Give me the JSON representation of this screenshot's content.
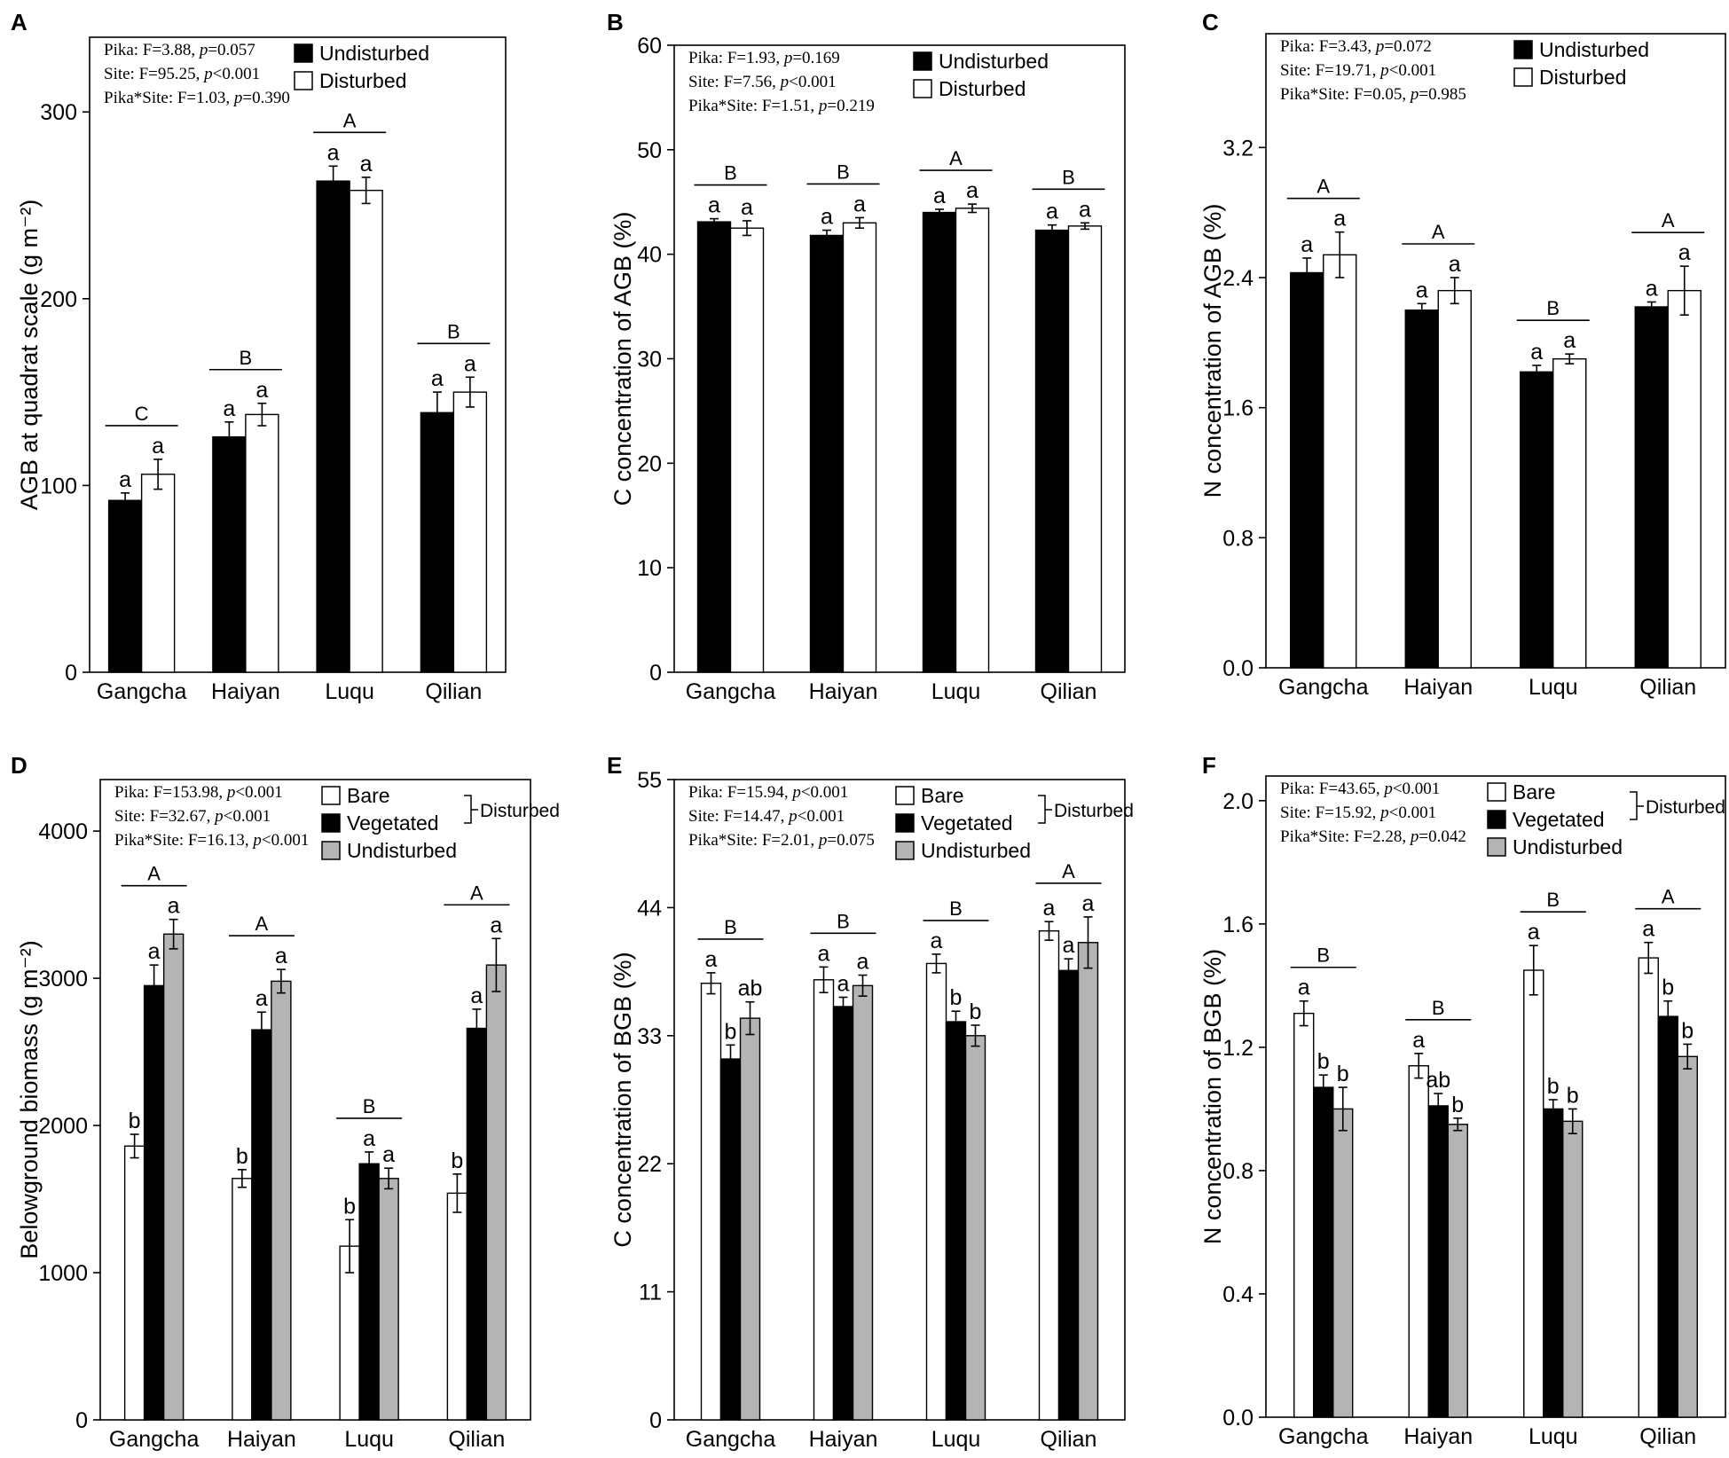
{
  "figure": {
    "sites": [
      "Gangcha",
      "Haiyan",
      "Luqu",
      "Qilian"
    ]
  },
  "colors": {
    "undisturbed_top": "#000000",
    "disturbed_top": "#ffffff",
    "bare": "#ffffff",
    "vegetated": "#000000",
    "undisturbed_bottom": "#b4b4b4",
    "axis": "#000000"
  },
  "chart_data": [
    {
      "panel": "A",
      "type": "bar",
      "ylabel": "AGB at quadrat scale (g m⁻²)",
      "ylim": [
        0,
        340
      ],
      "ticks": [
        0,
        100,
        200,
        300
      ],
      "tick_labels": [
        "0",
        "100",
        "200",
        "300"
      ],
      "categories": [
        "Gangcha",
        "Haiyan",
        "Luqu",
        "Qilian"
      ],
      "stats": [
        {
          "pre": "Pika: F=3.88, ",
          "p": "p",
          "post": "=0.057"
        },
        {
          "pre": "Site: F=95.25, ",
          "p": "p",
          "post": "<0.001"
        },
        {
          "pre": "Pika*Site: F=1.03, ",
          "p": "p",
          "post": "=0.390"
        }
      ],
      "legend": [
        "Undisturbed",
        "Disturbed"
      ],
      "group_label": "",
      "series": [
        {
          "name": "Undisturbed",
          "color_key": "undisturbed_top",
          "values": [
            92,
            126,
            263,
            139
          ],
          "errors": [
            4,
            8,
            8,
            11
          ],
          "letters": [
            "a",
            "a",
            "a",
            "a"
          ]
        },
        {
          "name": "Disturbed",
          "color_key": "disturbed_top",
          "values": [
            106,
            138,
            258,
            150
          ],
          "errors": [
            8,
            6,
            7,
            8
          ],
          "letters": [
            "a",
            "a",
            "a",
            "a"
          ]
        }
      ],
      "site_letters": [
        "C",
        "B",
        "A",
        "B"
      ]
    },
    {
      "panel": "B",
      "type": "bar",
      "ylabel": "C concentration of AGB (%)",
      "ylim": [
        0,
        60
      ],
      "ticks": [
        0,
        10,
        20,
        30,
        40,
        50,
        60
      ],
      "tick_labels": [
        "0",
        "10",
        "20",
        "30",
        "40",
        "50",
        "60"
      ],
      "categories": [
        "Gangcha",
        "Haiyan",
        "Luqu",
        "Qilian"
      ],
      "stats": [
        {
          "pre": "Pika: F=1.93, ",
          "p": "p",
          "post": "=0.169"
        },
        {
          "pre": "Site: F=7.56, ",
          "p": "p",
          "post": "<0.001"
        },
        {
          "pre": "Pika*Site: F=1.51, ",
          "p": "p",
          "post": "=0.219"
        }
      ],
      "legend": [
        "Undisturbed",
        "Disturbed"
      ],
      "group_label": "",
      "series": [
        {
          "name": "Undisturbed",
          "color_key": "undisturbed_top",
          "values": [
            43.1,
            41.8,
            44.0,
            42.3
          ],
          "errors": [
            0.3,
            0.5,
            0.3,
            0.5
          ],
          "letters": [
            "a",
            "a",
            "a",
            "a"
          ]
        },
        {
          "name": "Disturbed",
          "color_key": "disturbed_top",
          "values": [
            42.5,
            43.0,
            44.4,
            42.7
          ],
          "errors": [
            0.7,
            0.5,
            0.4,
            0.3
          ],
          "letters": [
            "a",
            "a",
            "a",
            "a"
          ]
        }
      ],
      "site_letters": [
        "B",
        "B",
        "A",
        "B"
      ]
    },
    {
      "panel": "C",
      "type": "bar",
      "ylabel": "N concentration of AGB (%)",
      "ylim": [
        0,
        3.9
      ],
      "ticks": [
        0,
        0.8,
        1.6,
        2.4,
        3.2
      ],
      "tick_labels": [
        "0.0",
        "0.8",
        "1.6",
        "2.4",
        "3.2"
      ],
      "categories": [
        "Gangcha",
        "Haiyan",
        "Luqu",
        "Qilian"
      ],
      "stats": [
        {
          "pre": "Pika: F=3.43, ",
          "p": "p",
          "post": "=0.072"
        },
        {
          "pre": "Site: F=19.71, ",
          "p": "p",
          "post": "<0.001"
        },
        {
          "pre": "Pika*Site: F=0.05, ",
          "p": "p",
          "post": "=0.985"
        }
      ],
      "legend": [
        "Undisturbed",
        "Disturbed"
      ],
      "group_label": "",
      "series": [
        {
          "name": "Undisturbed",
          "color_key": "undisturbed_top",
          "values": [
            2.43,
            2.2,
            1.82,
            2.22
          ],
          "errors": [
            0.09,
            0.04,
            0.04,
            0.03
          ],
          "letters": [
            "a",
            "a",
            "a",
            "a"
          ]
        },
        {
          "name": "Disturbed",
          "color_key": "disturbed_top",
          "values": [
            2.54,
            2.32,
            1.9,
            2.32
          ],
          "errors": [
            0.14,
            0.08,
            0.03,
            0.15
          ],
          "letters": [
            "a",
            "a",
            "a",
            "a"
          ]
        }
      ],
      "site_letters": [
        "A",
        "A",
        "B",
        "A"
      ]
    },
    {
      "panel": "D",
      "type": "bar",
      "ylabel": "Belowground biomass (g m⁻²)",
      "ylim": [
        0,
        4350
      ],
      "ticks": [
        0,
        1000,
        2000,
        3000,
        4000
      ],
      "tick_labels": [
        "0",
        "1000",
        "2000",
        "3000",
        "4000"
      ],
      "categories": [
        "Gangcha",
        "Haiyan",
        "Luqu",
        "Qilian"
      ],
      "stats": [
        {
          "pre": "Pika: F=153.98, ",
          "p": "p",
          "post": "<0.001"
        },
        {
          "pre": "Site: F=32.67, ",
          "p": "p",
          "post": "<0.001"
        },
        {
          "pre": "Pika*Site: F=16.13, ",
          "p": "p",
          "post": "<0.001"
        }
      ],
      "legend": [
        "Bare",
        "Vegetated",
        "Undisturbed"
      ],
      "group_label": "Disturbed",
      "series": [
        {
          "name": "Bare",
          "color_key": "bare",
          "values": [
            1860,
            1640,
            1180,
            1540
          ],
          "errors": [
            80,
            60,
            180,
            130
          ],
          "letters": [
            "b",
            "b",
            "b",
            "b"
          ]
        },
        {
          "name": "Vegetated",
          "color_key": "vegetated",
          "values": [
            2950,
            2650,
            1740,
            2660
          ],
          "errors": [
            140,
            120,
            80,
            130
          ],
          "letters": [
            "a",
            "a",
            "a",
            "a"
          ]
        },
        {
          "name": "Undisturbed",
          "color_key": "undisturbed_bottom",
          "values": [
            3300,
            2980,
            1640,
            3090
          ],
          "errors": [
            100,
            80,
            70,
            180
          ],
          "letters": [
            "a",
            "a",
            "a",
            "a"
          ]
        }
      ],
      "site_letters": [
        "A",
        "A",
        "B",
        "A"
      ]
    },
    {
      "panel": "E",
      "type": "bar",
      "ylabel": "C concentration of BGB (%)",
      "ylim": [
        0,
        55
      ],
      "ticks": [
        0,
        11,
        22,
        33,
        44,
        55
      ],
      "tick_labels": [
        "0",
        "11",
        "22",
        "33",
        "44",
        "55"
      ],
      "categories": [
        "Gangcha",
        "Haiyan",
        "Luqu",
        "Qilian"
      ],
      "stats": [
        {
          "pre": "Pika: F=15.94, ",
          "p": "p",
          "post": "<0.001"
        },
        {
          "pre": "Site: F=14.47, ",
          "p": "p",
          "post": "<0.001"
        },
        {
          "pre": "Pika*Site: F=2.01, ",
          "p": "p",
          "post": "=0.075"
        }
      ],
      "legend": [
        "Bare",
        "Vegetated",
        "Undisturbed"
      ],
      "group_label": "Disturbed",
      "series": [
        {
          "name": "Bare",
          "color_key": "bare",
          "values": [
            37.5,
            37.8,
            39.2,
            42.0
          ],
          "errors": [
            0.9,
            1.1,
            0.8,
            0.8
          ],
          "letters": [
            "a",
            "a",
            "a",
            "a"
          ]
        },
        {
          "name": "Vegetated",
          "color_key": "vegetated",
          "values": [
            31.0,
            35.5,
            34.2,
            38.6
          ],
          "errors": [
            1.2,
            0.8,
            0.9,
            1.0
          ],
          "letters": [
            "b",
            "a",
            "b",
            "a"
          ]
        },
        {
          "name": "Undisturbed",
          "color_key": "undisturbed_bottom",
          "values": [
            34.5,
            37.3,
            33.0,
            41.0
          ],
          "errors": [
            1.4,
            0.9,
            0.9,
            2.2
          ],
          "letters": [
            "ab",
            "a",
            "b",
            "a"
          ]
        }
      ],
      "site_letters": [
        "B",
        "B",
        "B",
        "A"
      ]
    },
    {
      "panel": "F",
      "type": "bar",
      "ylabel": "N concentration of BGB (%)",
      "ylim": [
        0,
        2.08
      ],
      "ticks": [
        0,
        0.4,
        0.8,
        1.2,
        1.6,
        2.0
      ],
      "tick_labels": [
        "0.0",
        "0.4",
        "0.8",
        "1.2",
        "1.6",
        "2.0"
      ],
      "categories": [
        "Gangcha",
        "Haiyan",
        "Luqu",
        "Qilian"
      ],
      "stats": [
        {
          "pre": "Pika: F=43.65, ",
          "p": "p",
          "post": "<0.001"
        },
        {
          "pre": "Site: F=15.92, ",
          "p": "p",
          "post": "<0.001"
        },
        {
          "pre": "Pika*Site: F=2.28, ",
          "p": "p",
          "post": "=0.042"
        }
      ],
      "legend": [
        "Bare",
        "Vegetated",
        "Undisturbed"
      ],
      "group_label": "Disturbed",
      "series": [
        {
          "name": "Bare",
          "color_key": "bare",
          "values": [
            1.31,
            1.14,
            1.45,
            1.49
          ],
          "errors": [
            0.04,
            0.04,
            0.08,
            0.05
          ],
          "letters": [
            "a",
            "a",
            "a",
            "a"
          ]
        },
        {
          "name": "Vegetated",
          "color_key": "vegetated",
          "values": [
            1.07,
            1.01,
            1.0,
            1.3
          ],
          "errors": [
            0.04,
            0.04,
            0.03,
            0.05
          ],
          "letters": [
            "b",
            "ab",
            "b",
            "b"
          ]
        },
        {
          "name": "Undisturbed",
          "color_key": "undisturbed_bottom",
          "values": [
            1.0,
            0.95,
            0.96,
            1.17
          ],
          "errors": [
            0.07,
            0.02,
            0.04,
            0.04
          ],
          "letters": [
            "b",
            "b",
            "b",
            "b"
          ]
        }
      ],
      "site_letters": [
        "B",
        "B",
        "B",
        "A"
      ]
    }
  ]
}
